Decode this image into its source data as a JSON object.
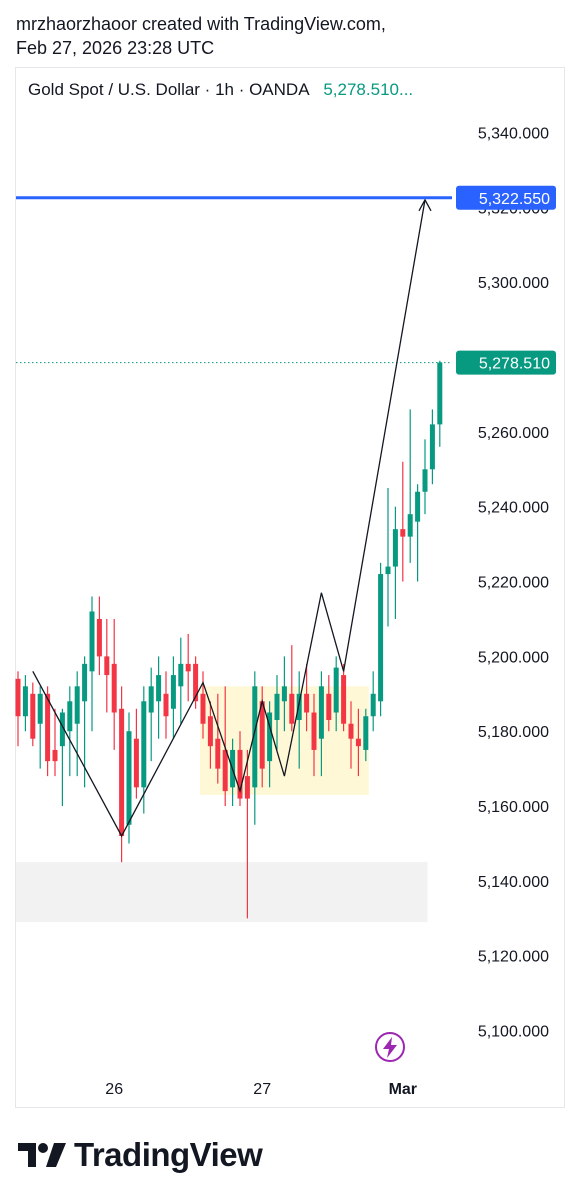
{
  "header": {
    "line1": "mrzhaorzhaoor created with TradingView.com,",
    "line2": "Feb 27, 2026 23:28 UTC"
  },
  "legend": {
    "symbol": "Gold Spot / U.S. Dollar · 1h · OANDA",
    "price": "5,278.510..."
  },
  "footer": {
    "brand": "TradingView"
  },
  "colors": {
    "up": "#089981",
    "down": "#f23645",
    "target": "#2962ff",
    "box": "#fff8d6",
    "zone": "#f2f2f2",
    "bolt": "#9c27b0"
  },
  "icons": {
    "bolt": "lightning-bolt-icon",
    "logo": "tradingview-logo-icon"
  },
  "chart_data": {
    "type": "candlestick",
    "symbol": "XAUUSD",
    "interval": "1h",
    "yaxis": {
      "ticks": [
        5340,
        5320,
        5300,
        5280,
        5260,
        5240,
        5220,
        5200,
        5180,
        5160,
        5140,
        5120,
        5100
      ],
      "tick_labels": [
        "5,340.000",
        "5,320.000",
        "5,300.000",
        "5,280.000",
        "5,260.000",
        "5,240.000",
        "5,220.000",
        "5,200.000",
        "5,180.000",
        "5,160.000",
        "5,140.000",
        "5,120.000",
        "5,100.000"
      ],
      "range": [
        5086,
        5346
      ],
      "position": "right"
    },
    "xaxis": {
      "labels": [
        {
          "text": "26",
          "index": 13
        },
        {
          "text": "27",
          "index": 33
        },
        {
          "text": "Mar",
          "index": 52
        }
      ]
    },
    "target_line": {
      "value": 5322.55,
      "label": "5,322.550"
    },
    "last_price": {
      "value": 5278.51,
      "label": "5,278.510"
    },
    "candles": [
      [
        5194,
        5196,
        5176,
        5184
      ],
      [
        5184,
        5195,
        5180,
        5192
      ],
      [
        5190,
        5193,
        5176,
        5178
      ],
      [
        5182,
        5192,
        5170,
        5190
      ],
      [
        5190,
        5192,
        5168,
        5172
      ],
      [
        5175,
        5186,
        5168,
        5172
      ],
      [
        5176,
        5186,
        5160,
        5185
      ],
      [
        5180,
        5192,
        5168,
        5188
      ],
      [
        5182,
        5196,
        5168,
        5192
      ],
      [
        5188,
        5200,
        5165,
        5198
      ],
      [
        5196,
        5216,
        5180,
        5212
      ],
      [
        5210,
        5216,
        5195,
        5200
      ],
      [
        5200,
        5210,
        5185,
        5195
      ],
      [
        5198,
        5210,
        5175,
        5185
      ],
      [
        5186,
        5192,
        5145,
        5152
      ],
      [
        5155,
        5185,
        5150,
        5180
      ],
      [
        5178,
        5186,
        5162,
        5165
      ],
      [
        5165,
        5192,
        5158,
        5188
      ],
      [
        5185,
        5197,
        5172,
        5192
      ],
      [
        5188,
        5200,
        5178,
        5195
      ],
      [
        5190,
        5196,
        5178,
        5184
      ],
      [
        5186,
        5200,
        5178,
        5195
      ],
      [
        5192,
        5205,
        5182,
        5198
      ],
      [
        5198,
        5206,
        5188,
        5196
      ],
      [
        5198,
        5200,
        5186,
        5188
      ],
      [
        5190,
        5196,
        5178,
        5182
      ],
      [
        5184,
        5188,
        5170,
        5176
      ],
      [
        5178,
        5190,
        5166,
        5170
      ],
      [
        5175,
        5192,
        5160,
        5164
      ],
      [
        5165,
        5178,
        5160,
        5175
      ],
      [
        5175,
        5180,
        5160,
        5162
      ],
      [
        5168,
        5175,
        5130,
        5162
      ],
      [
        5165,
        5196,
        5155,
        5192
      ],
      [
        5188,
        5192,
        5165,
        5170
      ],
      [
        5172,
        5188,
        5165,
        5185
      ],
      [
        5183,
        5195,
        5175,
        5190
      ],
      [
        5188,
        5200,
        5180,
        5192
      ],
      [
        5190,
        5203,
        5180,
        5182
      ],
      [
        5183,
        5196,
        5170,
        5190
      ],
      [
        5190,
        5198,
        5180,
        5185
      ],
      [
        5185,
        5190,
        5168,
        5175
      ],
      [
        5178,
        5196,
        5168,
        5192
      ],
      [
        5190,
        5195,
        5180,
        5183
      ],
      [
        5185,
        5200,
        5180,
        5197
      ],
      [
        5195,
        5198,
        5180,
        5182
      ],
      [
        5182,
        5188,
        5170,
        5178
      ],
      [
        5178,
        5186,
        5168,
        5176
      ],
      [
        5175,
        5186,
        5172,
        5184
      ],
      [
        5184,
        5196,
        5180,
        5190
      ],
      [
        5188,
        5225,
        5184,
        5222
      ],
      [
        5222,
        5245,
        5208,
        5224
      ],
      [
        5224,
        5240,
        5210,
        5234
      ],
      [
        5234,
        5252,
        5220,
        5232
      ],
      [
        5232,
        5266,
        5225,
        5238
      ],
      [
        5236,
        5246,
        5220,
        5244
      ],
      [
        5244,
        5258,
        5238,
        5250
      ],
      [
        5250,
        5266,
        5246,
        5262
      ],
      [
        5262,
        5279,
        5256,
        5278.51
      ]
    ],
    "drawings": {
      "zigzag_path": [
        {
          "index": 2,
          "price": 5196
        },
        {
          "index": 14,
          "price": 5152
        },
        {
          "index": 25,
          "price": 5193
        },
        {
          "index": 30,
          "price": 5164
        },
        {
          "index": 33,
          "price": 5188
        },
        {
          "index": 36,
          "price": 5168
        },
        {
          "index": 41,
          "price": 5217
        },
        {
          "index": 44,
          "price": 5196
        },
        {
          "index": 55,
          "price": 5322
        }
      ],
      "highlight_box": {
        "from_index": 25,
        "to_index": 47,
        "price_high": 5192,
        "price_low": 5163
      },
      "zone_box": {
        "from_index": 0,
        "to_index": 54,
        "price_high": 5145,
        "price_low": 5129
      }
    }
  }
}
